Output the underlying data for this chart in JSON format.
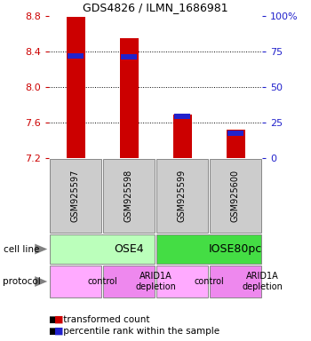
{
  "title": "GDS4826 / ILMN_1686981",
  "samples": [
    "GSM925597",
    "GSM925598",
    "GSM925599",
    "GSM925600"
  ],
  "transformed_counts": [
    8.79,
    8.55,
    7.69,
    7.52
  ],
  "percentile_ranks": [
    8.35,
    8.34,
    7.67,
    7.48
  ],
  "y_min": 7.2,
  "y_max": 8.8,
  "y_ticks": [
    7.2,
    7.6,
    8.0,
    8.4,
    8.8
  ],
  "right_y_ticks": [
    0,
    25,
    50,
    75,
    100
  ],
  "right_y_tick_labels": [
    "0",
    "25",
    "50",
    "75",
    "100%"
  ],
  "bar_color": "#cc0000",
  "percentile_color": "#2222cc",
  "cell_line_groups": [
    {
      "label": "OSE4",
      "start": 0,
      "end": 2,
      "color": "#bbffbb"
    },
    {
      "label": "IOSE80pc",
      "start": 2,
      "end": 4,
      "color": "#44dd44"
    }
  ],
  "protocol_groups": [
    {
      "label": "control",
      "start": 0,
      "end": 1,
      "color": "#ffaaff"
    },
    {
      "label": "ARID1A\ndepletion",
      "start": 1,
      "end": 2,
      "color": "#ee88ee"
    },
    {
      "label": "control",
      "start": 2,
      "end": 3,
      "color": "#ffaaff"
    },
    {
      "label": "ARID1A\ndepletion",
      "start": 3,
      "end": 4,
      "color": "#ee88ee"
    }
  ],
  "gsm_box_color": "#cccccc",
  "left_tick_color": "#cc0000",
  "right_tick_color": "#2222cc",
  "bar_width": 0.35
}
